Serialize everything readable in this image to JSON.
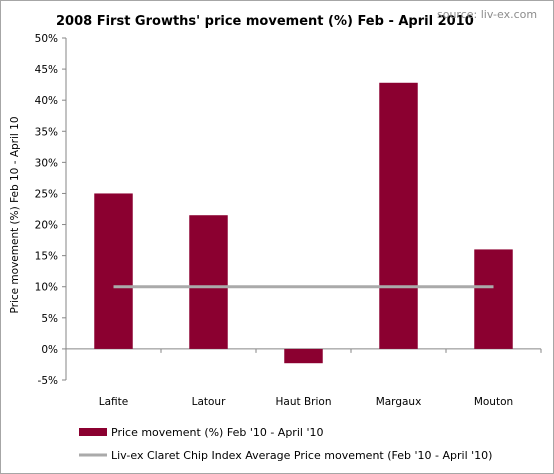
{
  "chart_data": {
    "type": "bar",
    "title": "2008 First Growths' price movement (%) Feb - April 2010",
    "source": "source:  liv-ex.com",
    "ylabel": "Price movement (%) Feb 10 - April 10",
    "xlabel": "",
    "categories": [
      "Lafite",
      "Latour",
      "Haut Brion",
      "Margaux",
      "Mouton"
    ],
    "series": [
      {
        "name": "Price movement (%) Feb '10 - April '10",
        "type": "bar",
        "color": "#8b0030",
        "values": [
          25.0,
          21.5,
          -2.3,
          42.8,
          16.0
        ]
      },
      {
        "name": "Liv-ex Claret Chip Index Average Price movement (Feb '10 - April '10)",
        "type": "line",
        "color": "#aaaaaa",
        "values": [
          10,
          10,
          10,
          10,
          10
        ]
      }
    ],
    "ylim": [
      -5,
      50
    ],
    "yticks": [
      -5,
      0,
      5,
      10,
      15,
      20,
      25,
      30,
      35,
      40,
      45,
      50
    ],
    "ytick_labels": [
      "-5%",
      "0%",
      "5%",
      "10%",
      "15%",
      "20%",
      "25%",
      "30%",
      "35%",
      "40%",
      "45%",
      "50%"
    ],
    "grid": false,
    "legend_position": "bottom"
  }
}
